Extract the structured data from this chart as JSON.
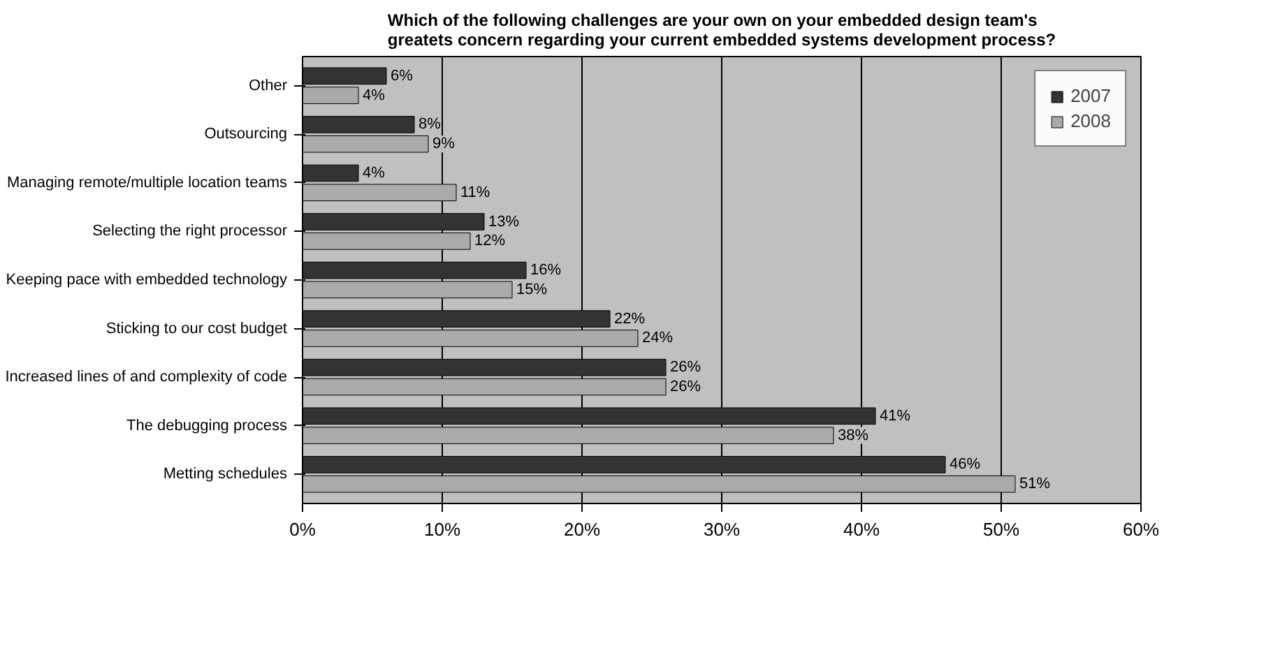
{
  "chart_data": {
    "type": "bar",
    "orientation": "horizontal",
    "title": "Which of the following challenges are your own on your embedded design team's greatets concern regarding your current embedded systems development process?",
    "categories": [
      "Other",
      "Outsourcing",
      "Managing remote/multiple location teams",
      "Selecting the right processor",
      "Keeping pace with embedded technology",
      "Sticking to our cost budget",
      "Increased lines of and complexity of code",
      "The debugging process",
      "Metting schedules"
    ],
    "series": [
      {
        "name": "2007",
        "color": "#333333",
        "values": [
          6,
          8,
          4,
          13,
          16,
          22,
          26,
          41,
          46
        ],
        "value_labels": [
          "6%",
          "8%",
          "4%",
          "13%",
          "16%",
          "22%",
          "26%",
          "41%",
          "46%"
        ]
      },
      {
        "name": "2008",
        "color": "#aaaaaa",
        "values": [
          4,
          9,
          11,
          12,
          15,
          24,
          26,
          38,
          51
        ],
        "value_labels": [
          "4%",
          "9%",
          "11%",
          "12%",
          "15%",
          "24%",
          "26%",
          "38%",
          "51%"
        ]
      }
    ],
    "xlim": [
      0,
      60
    ],
    "xticks": [
      {
        "value": 0,
        "label": "0%"
      },
      {
        "value": 10,
        "label": "10%"
      },
      {
        "value": 20,
        "label": "20%"
      },
      {
        "value": 30,
        "label": "30%"
      },
      {
        "value": 40,
        "label": "40%"
      },
      {
        "value": 50,
        "label": "50%"
      },
      {
        "value": 60,
        "label": "60%"
      }
    ],
    "grid": "x",
    "legend": "top right"
  }
}
